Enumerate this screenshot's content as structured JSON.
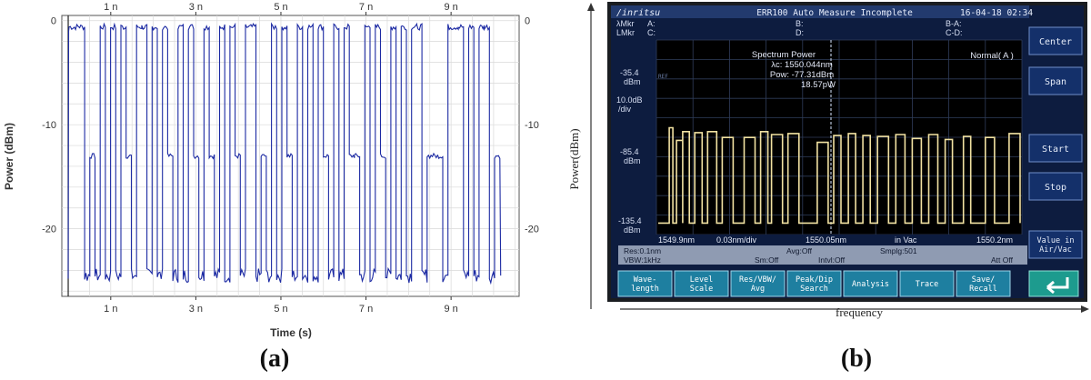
{
  "chart_data": [
    {
      "type": "line",
      "panel_label": "(a)",
      "xlabel": "Time (s)",
      "ylabel": "Power (dBm)",
      "xlim": [
        -0.15,
        10.6
      ],
      "ylim": [
        -26.5,
        0.5
      ],
      "x_ticks": [
        {
          "v": 1,
          "label": "1 n"
        },
        {
          "v": 3,
          "label": "3 n"
        },
        {
          "v": 5,
          "label": "5 n"
        },
        {
          "v": 7,
          "label": "7 n"
        },
        {
          "v": 9,
          "label": "9 n"
        }
      ],
      "y_ticks": [
        {
          "v": 0,
          "label": "0"
        },
        {
          "v": -10,
          "label": "-10"
        },
        {
          "v": -20,
          "label": "-20"
        }
      ],
      "grid": true,
      "color": "#1c2aa3",
      "series": [
        {
          "levels": {
            "high": -0.6,
            "mid": -13.0,
            "low": -24.5
          },
          "bits": [
            "H",
            "H",
            "H",
            "L",
            "M",
            "L",
            "H",
            "L",
            "H",
            "L",
            "H",
            "M",
            "L",
            "H",
            "H",
            "L",
            "H",
            "L",
            "H",
            "M",
            "L",
            "H",
            "L",
            "H",
            "M",
            "L",
            "H",
            "M",
            "L",
            "H",
            "L",
            "H",
            "M",
            "L",
            "H",
            "H",
            "L",
            "M",
            "L",
            "H",
            "L",
            "H",
            "M",
            "L",
            "H",
            "L",
            "H",
            "L",
            "H",
            "M",
            "L",
            "H",
            "L",
            "H",
            "M",
            "M",
            "L",
            "H",
            "L",
            "H",
            "M",
            "L",
            "H",
            "L",
            "H",
            "L",
            "H",
            "H",
            "L",
            "M",
            "M",
            "M",
            "L",
            "H",
            "H",
            "H",
            "L",
            "H",
            "L",
            "H",
            "H",
            "L",
            "M"
          ],
          "x_start": 0.02,
          "bit_period": 0.122
        }
      ]
    },
    {
      "type": "line",
      "panel_label": "(b)",
      "xlabel": "frequency",
      "ylabel": "Power(dBm)",
      "y_ticks": [
        {
          "v": -35.4,
          "label": "-35.4"
        },
        {
          "v": -85.4,
          "label": "-85.4"
        },
        {
          "v": -135.4,
          "label": "-135.4"
        }
      ],
      "ylim": [
        -135.4,
        -35.4
      ],
      "xlim": [
        1549.9,
        1550.2
      ],
      "color": "#f2e2a2",
      "series": [
        {
          "segments": [
            [
              0.035,
              0.045,
              -80.5
            ],
            [
              0.055,
              0.072,
              -87.0
            ],
            [
              0.072,
              0.09,
              -82.5
            ],
            [
              0.105,
              0.125,
              -83.0
            ],
            [
              0.14,
              0.165,
              -82.5
            ],
            [
              0.18,
              0.21,
              -85.5
            ],
            [
              0.24,
              0.27,
              -85.5
            ],
            [
              0.285,
              0.305,
              -82.5
            ],
            [
              0.315,
              0.345,
              -84.0
            ],
            [
              0.36,
              0.39,
              -83.5
            ],
            [
              0.44,
              0.47,
              -88.0
            ],
            [
              0.485,
              0.505,
              -84.5
            ],
            [
              0.525,
              0.545,
              -83.5
            ],
            [
              0.565,
              0.585,
              -84.5
            ],
            [
              0.605,
              0.635,
              -85.0
            ],
            [
              0.655,
              0.68,
              -84.0
            ],
            [
              0.7,
              0.725,
              -86.0
            ],
            [
              0.745,
              0.77,
              -84.0
            ],
            [
              0.79,
              0.81,
              -86.5
            ],
            [
              0.84,
              0.86,
              -85.0
            ],
            [
              0.9,
              0.925,
              -85.5
            ],
            [
              0.965,
              0.995,
              -83.5
            ]
          ],
          "floor": -129.5
        }
      ],
      "screen": {
        "brand": "/inritsu",
        "title": "ERR100 Auto Measure Incomplete",
        "datetime": "16-04-18 02:34",
        "marker_rows": [
          [
            "λMkr",
            "A:",
            "B:",
            "B-A:"
          ],
          [
            "LMkr",
            "C:",
            "D:",
            "C-D:"
          ]
        ],
        "ref_level": "-35.4",
        "ref_unit": "dBm",
        "mid_level": "-85.4",
        "low_level": "-135.4",
        "scale_value": "10.0dB",
        "scale_unit": "/div",
        "ref_tag": "REF",
        "mode": "Normal( A )",
        "readout_title": "Spectrum Power",
        "readout_lambda": "λc: 1550.044nm",
        "readout_pow": "Pow: -77.31dBm",
        "readout_pw": "18.57pW",
        "x_start": "1549.9nm",
        "x_div": "0.03nm/div",
        "x_center": "1550.05nm",
        "x_medium": "in Vac",
        "x_stop": "1550.2nm",
        "status_res": "Res:0.1nm",
        "status_avg": "Avg:Off",
        "status_smplg": "Smplg:501",
        "status_vbw": "VBW:1kHz",
        "status_sm": "Sm:Off",
        "status_intvl": "Intvl:Off",
        "status_att": "Att Off",
        "side_buttons": [
          "Center",
          "Span",
          "Start",
          "Stop"
        ],
        "side_value_line1": "Value in",
        "side_value_line2": "Air/Vac",
        "bottom_buttons": [
          [
            "Wave-",
            "length"
          ],
          [
            "Level",
            "Scale"
          ],
          [
            "Res/VBW/",
            "Avg"
          ],
          [
            "Peak/Dip",
            "Search"
          ],
          [
            "Analysis",
            ""
          ],
          [
            "Trace",
            ""
          ],
          [
            "Save/",
            "Recall"
          ]
        ],
        "return_icon": "return-arrow-icon"
      }
    }
  ]
}
